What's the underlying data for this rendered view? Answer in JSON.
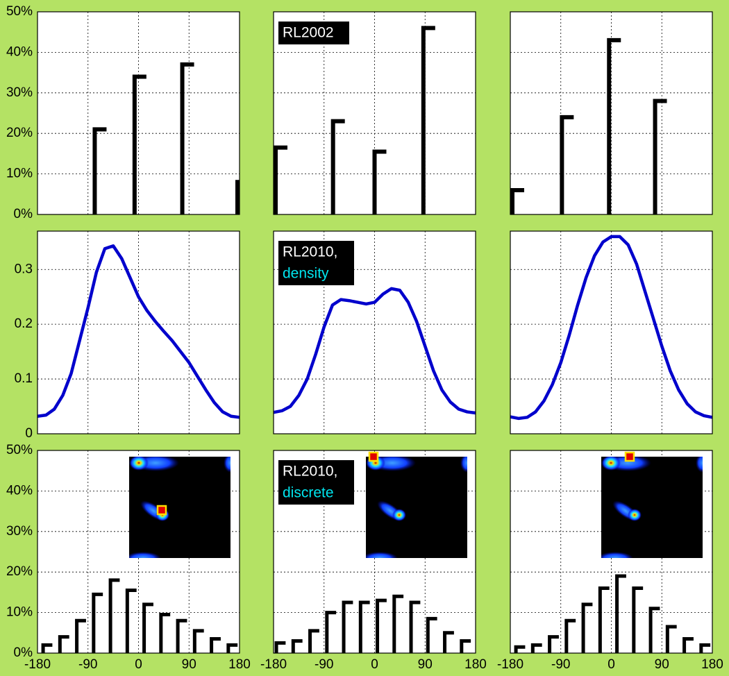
{
  "chart_data": [
    {
      "type": "bar",
      "color": "#000000",
      "x": [
        -78,
        -7,
        78,
        178
      ],
      "values": [
        21,
        34,
        37,
        8
      ],
      "xlim": [
        -180,
        180
      ],
      "ylim": [
        0,
        50
      ],
      "xticks": [
        -90,
        0,
        90
      ],
      "yticks": [
        {
          "value": 0,
          "label": "0%"
        },
        {
          "value": 10,
          "label": "10%"
        },
        {
          "value": 20,
          "label": "20%"
        },
        {
          "value": 30,
          "label": "30%"
        },
        {
          "value": 40,
          "label": "40%"
        },
        {
          "value": 50,
          "label": "50%"
        }
      ],
      "xtick_labels": false,
      "ytick_labels": true,
      "grid": true
    },
    {
      "type": "bar",
      "color": "#000000",
      "x": [
        -179,
        -74,
        0,
        87
      ],
      "values": [
        16.5,
        23,
        15.5,
        46
      ],
      "xlim": [
        -180,
        180
      ],
      "ylim": [
        0,
        50
      ],
      "xticks": [
        -90,
        0,
        90
      ],
      "yticks": [
        0,
        10,
        20,
        30,
        40,
        50
      ],
      "xtick_labels": false,
      "ytick_labels": false,
      "grid": true,
      "annotation": [
        "RL2002"
      ],
      "annotation_colors": [
        "#ffffff"
      ]
    },
    {
      "type": "bar",
      "color": "#000000",
      "x": [
        -179,
        -88,
        -4,
        78
      ],
      "values": [
        6,
        24,
        43,
        28
      ],
      "xlim": [
        -180,
        180
      ],
      "ylim": [
        0,
        50
      ],
      "xticks": [
        -90,
        0,
        90
      ],
      "yticks": [
        0,
        10,
        20,
        30,
        40,
        50
      ],
      "xtick_labels": false,
      "ytick_labels": false,
      "grid": true
    },
    {
      "type": "line",
      "color": "#0000cc",
      "x": [
        -180,
        -165,
        -150,
        -135,
        -120,
        -105,
        -90,
        -75,
        -60,
        -45,
        -30,
        -15,
        0,
        15,
        30,
        45,
        60,
        75,
        90,
        105,
        120,
        135,
        150,
        165,
        180
      ],
      "values": [
        0.032,
        0.034,
        0.045,
        0.07,
        0.11,
        0.17,
        0.23,
        0.295,
        0.338,
        0.343,
        0.32,
        0.285,
        0.25,
        0.225,
        0.205,
        0.187,
        0.17,
        0.15,
        0.13,
        0.105,
        0.08,
        0.057,
        0.04,
        0.032,
        0.03
      ],
      "xlim": [
        -180,
        180
      ],
      "ylim": [
        0,
        0.37
      ],
      "xticks": [
        -90,
        0,
        90
      ],
      "yticks": [
        0,
        0.1,
        0.2,
        0.3
      ],
      "xtick_labels": false,
      "ytick_labels": true,
      "grid": true
    },
    {
      "type": "line",
      "color": "#0000cc",
      "x": [
        -180,
        -165,
        -150,
        -135,
        -120,
        -105,
        -90,
        -75,
        -60,
        -45,
        -30,
        -15,
        0,
        15,
        30,
        45,
        60,
        75,
        90,
        105,
        120,
        135,
        150,
        165,
        180
      ],
      "values": [
        0.039,
        0.042,
        0.05,
        0.07,
        0.1,
        0.145,
        0.195,
        0.235,
        0.245,
        0.243,
        0.24,
        0.237,
        0.24,
        0.255,
        0.265,
        0.262,
        0.24,
        0.205,
        0.16,
        0.115,
        0.08,
        0.058,
        0.045,
        0.04,
        0.038
      ],
      "xlim": [
        -180,
        180
      ],
      "ylim": [
        0,
        0.37
      ],
      "xticks": [
        -90,
        0,
        90
      ],
      "yticks": [
        0,
        0.1,
        0.2,
        0.3
      ],
      "xtick_labels": false,
      "ytick_labels": false,
      "grid": true,
      "annotation": [
        "RL2010,",
        "density"
      ],
      "annotation_colors": [
        "#ffffff",
        "#00e5ee"
      ]
    },
    {
      "type": "line",
      "color": "#0000cc",
      "x": [
        -180,
        -165,
        -150,
        -135,
        -120,
        -105,
        -90,
        -75,
        -60,
        -45,
        -30,
        -15,
        0,
        15,
        30,
        45,
        60,
        75,
        90,
        105,
        120,
        135,
        150,
        165,
        180
      ],
      "values": [
        0.031,
        0.028,
        0.03,
        0.04,
        0.06,
        0.09,
        0.13,
        0.18,
        0.235,
        0.285,
        0.325,
        0.35,
        0.36,
        0.36,
        0.345,
        0.31,
        0.26,
        0.21,
        0.16,
        0.115,
        0.08,
        0.055,
        0.04,
        0.033,
        0.03
      ],
      "xlim": [
        -180,
        180
      ],
      "ylim": [
        0,
        0.37
      ],
      "xticks": [
        -90,
        0,
        90
      ],
      "yticks": [
        0,
        0.1,
        0.2,
        0.3
      ],
      "xtick_labels": false,
      "ytick_labels": false,
      "grid": true
    },
    {
      "type": "bar",
      "color": "#000000",
      "x": [
        -170,
        -140,
        -110,
        -80,
        -50,
        -20,
        10,
        40,
        70,
        100,
        130,
        160
      ],
      "values": [
        2,
        4,
        8,
        14.5,
        18,
        15.5,
        12,
        9.5,
        8,
        5.5,
        3.5,
        2
      ],
      "xlim": [
        -180,
        180
      ],
      "ylim": [
        0,
        50
      ],
      "xticks": [
        -180,
        -90,
        0,
        90,
        180
      ],
      "yticks": [
        {
          "value": 0,
          "label": "0%"
        },
        {
          "value": 10,
          "label": "10%"
        },
        {
          "value": 20,
          "label": "20%"
        },
        {
          "value": 30,
          "label": "30%"
        },
        {
          "value": 40,
          "label": "40%"
        },
        {
          "value": 50,
          "label": "50%"
        }
      ],
      "xtick_labels": true,
      "ytick_labels": true,
      "grid": true
    },
    {
      "type": "bar",
      "color": "#000000",
      "x": [
        -175,
        -145,
        -115,
        -85,
        -55,
        -25,
        5,
        35,
        65,
        95,
        125,
        155
      ],
      "values": [
        2.5,
        3,
        5.5,
        10,
        12.5,
        12.5,
        13,
        14,
        12.5,
        8.5,
        5,
        3
      ],
      "xlim": [
        -180,
        180
      ],
      "ylim": [
        0,
        50
      ],
      "xticks": [
        -180,
        -90,
        0,
        90,
        180
      ],
      "yticks": [
        0,
        10,
        20,
        30,
        40,
        50
      ],
      "xtick_labels": true,
      "ytick_labels": false,
      "grid": true,
      "annotation": [
        "RL2010,",
        "discrete"
      ],
      "annotation_colors": [
        "#ffffff",
        "#00e5ee"
      ]
    },
    {
      "type": "bar",
      "color": "#000000",
      "x": [
        -170,
        -140,
        -110,
        -80,
        -50,
        -20,
        10,
        40,
        70,
        100,
        130,
        160
      ],
      "values": [
        1.5,
        2,
        4,
        8,
        12,
        16,
        19,
        16,
        11,
        6.5,
        3.5,
        2
      ],
      "xlim": [
        -180,
        180
      ],
      "ylim": [
        0,
        50
      ],
      "xticks": [
        -180,
        -90,
        0,
        90,
        180
      ],
      "yticks": [
        0,
        10,
        20,
        30,
        40,
        50
      ],
      "xtick_labels": true,
      "ytick_labels": false,
      "grid": true
    }
  ]
}
